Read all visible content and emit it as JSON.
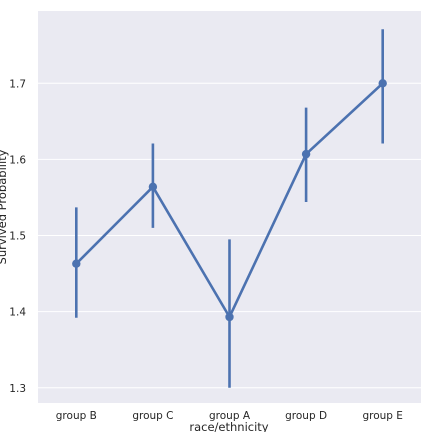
{
  "chart_data": {
    "type": "line",
    "style": "point-plot-with-error-bars",
    "xlabel": "race/ethnicity",
    "ylabel": "Survived Probability",
    "categories": [
      "group B",
      "group C",
      "group A",
      "group D",
      "group E"
    ],
    "values": [
      1.463,
      1.564,
      1.393,
      1.607,
      1.7
    ],
    "error_low": [
      1.392,
      1.51,
      1.3,
      1.544,
      1.621
    ],
    "error_high": [
      1.537,
      1.621,
      1.495,
      1.668,
      1.771
    ],
    "ylim": [
      1.28,
      1.795
    ],
    "yticks": [
      "1.3",
      "1.4",
      "1.5",
      "1.6",
      "1.7"
    ],
    "grid": true,
    "background_color": "#eaeaf2",
    "grid_color": "#ffffff",
    "line_color": "#4c72b0"
  }
}
